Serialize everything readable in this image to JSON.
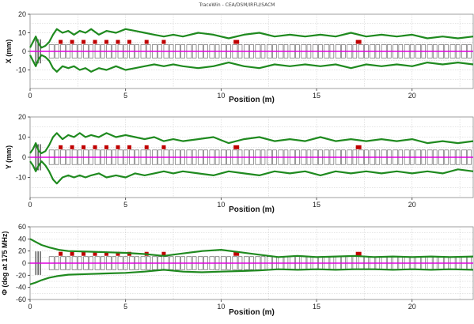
{
  "window": {
    "title": "TraceWin - CEA/DSM/IRFU/SACM"
  },
  "chart_data": [
    {
      "type": "line",
      "ylabel": "X (mm)",
      "xlabel": "Position (m)",
      "xlim": [
        0,
        23.2
      ],
      "ylim": [
        -20,
        20
      ],
      "xticks": [
        0,
        5,
        10,
        15,
        20
      ],
      "yticks": [
        -10,
        0,
        10,
        20
      ],
      "grid": true,
      "series": [
        {
          "color": "#1f8a1f",
          "x": [
            0,
            0.15,
            0.3,
            0.45,
            0.6,
            0.8,
            1.0,
            1.2,
            1.4,
            1.7,
            2.0,
            2.3,
            2.6,
            2.9,
            3.2,
            3.6,
            4.0,
            4.5,
            5.0,
            5.5,
            6.0,
            6.5,
            7.0,
            7.5,
            8.0,
            8.8,
            9.6,
            10.4,
            11.2,
            12.0,
            12.8,
            13.6,
            14.4,
            15.2,
            16.0,
            16.8,
            17.6,
            18.4,
            19.2,
            20.0,
            20.8,
            21.6,
            22.4,
            23.2
          ],
          "values": [
            2,
            5,
            8,
            4,
            2,
            3,
            5,
            9,
            12,
            10,
            11,
            9,
            11,
            10,
            12,
            9,
            11,
            10,
            12,
            11,
            10,
            9,
            8,
            9,
            8,
            10,
            9,
            7,
            9,
            10,
            8,
            9,
            8,
            9,
            8,
            10,
            8,
            9,
            8,
            9,
            7,
            8,
            7,
            8
          ]
        },
        {
          "color": "#1f8a1f",
          "x": [
            0,
            0.15,
            0.3,
            0.45,
            0.6,
            0.8,
            1.0,
            1.2,
            1.4,
            1.7,
            2.0,
            2.3,
            2.6,
            2.9,
            3.2,
            3.6,
            4.0,
            4.5,
            5.0,
            5.5,
            6.0,
            6.5,
            7.0,
            7.5,
            8.0,
            8.8,
            9.6,
            10.4,
            11.2,
            12.0,
            12.8,
            13.6,
            14.4,
            15.2,
            16.0,
            16.8,
            17.6,
            18.4,
            19.2,
            20.0,
            20.8,
            21.6,
            22.4,
            23.2
          ],
          "values": [
            -2,
            -5,
            -8,
            -4,
            -2,
            -3,
            -5,
            -9,
            -11,
            -8,
            -9,
            -8,
            -10,
            -9,
            -11,
            -9,
            -10,
            -8,
            -10,
            -9,
            -8,
            -7,
            -8,
            -7,
            -8,
            -9,
            -8,
            -6,
            -8,
            -9,
            -7,
            -8,
            -7,
            -8,
            -7,
            -9,
            -7,
            -8,
            -7,
            -8,
            -6,
            -7,
            -6,
            -7
          ]
        },
        {
          "color": "#e000e0",
          "x": [
            0,
            23.2
          ],
          "values": [
            0,
            0
          ]
        }
      ]
    },
    {
      "type": "line",
      "ylabel": "Y (mm)",
      "xlabel": "Position (m)",
      "xlim": [
        0,
        23.2
      ],
      "ylim": [
        -20,
        20
      ],
      "xticks": [
        0,
        5,
        10,
        15,
        20
      ],
      "yticks": [
        -10,
        0,
        10,
        20
      ],
      "grid": true,
      "series": [
        {
          "color": "#1f8a1f",
          "x": [
            0,
            0.15,
            0.3,
            0.45,
            0.6,
            0.8,
            1.0,
            1.2,
            1.4,
            1.7,
            2.0,
            2.3,
            2.6,
            2.9,
            3.2,
            3.6,
            4.0,
            4.5,
            5.0,
            5.5,
            6.0,
            6.5,
            7.0,
            7.5,
            8.0,
            8.8,
            9.6,
            10.4,
            11.2,
            12.0,
            12.8,
            13.6,
            14.4,
            15.2,
            16.0,
            16.8,
            17.6,
            18.4,
            19.2,
            20.0,
            20.8,
            21.6,
            22.4,
            23.2
          ],
          "values": [
            2,
            4,
            7,
            3,
            2,
            3,
            6,
            10,
            12,
            9,
            11,
            10,
            12,
            10,
            11,
            10,
            12,
            10,
            11,
            10,
            9,
            10,
            8,
            9,
            8,
            9,
            10,
            7,
            9,
            10,
            8,
            9,
            8,
            10,
            8,
            9,
            8,
            9,
            8,
            9,
            7,
            8,
            7,
            8
          ]
        },
        {
          "color": "#1f8a1f",
          "x": [
            0,
            0.15,
            0.3,
            0.45,
            0.6,
            0.8,
            1.0,
            1.2,
            1.4,
            1.7,
            2.0,
            2.3,
            2.6,
            2.9,
            3.2,
            3.6,
            4.0,
            4.5,
            5.0,
            5.5,
            6.0,
            6.5,
            7.0,
            7.5,
            8.0,
            8.8,
            9.6,
            10.4,
            11.2,
            12.0,
            12.8,
            13.6,
            14.4,
            15.2,
            16.0,
            16.8,
            17.6,
            18.4,
            19.2,
            20.0,
            20.8,
            21.6,
            22.4,
            23.2
          ],
          "values": [
            -2,
            -4,
            -7,
            -4,
            -2,
            -4,
            -7,
            -11,
            -13,
            -10,
            -9,
            -10,
            -9,
            -10,
            -9,
            -8,
            -10,
            -9,
            -10,
            -8,
            -9,
            -8,
            -7,
            -8,
            -7,
            -8,
            -9,
            -7,
            -8,
            -9,
            -7,
            -8,
            -7,
            -9,
            -7,
            -8,
            -7,
            -8,
            -7,
            -8,
            -7,
            -8,
            -6,
            -7
          ]
        },
        {
          "color": "#e000e0",
          "x": [
            0,
            23.2
          ],
          "values": [
            0,
            0
          ]
        }
      ]
    },
    {
      "type": "line",
      "ylabel": "Φ (deg at 175 MHz)",
      "xlabel": "Position (m)",
      "xlim": [
        0,
        23.2
      ],
      "ylim": [
        -60,
        60
      ],
      "xticks": [
        0,
        5,
        10,
        15,
        20
      ],
      "yticks": [
        -60,
        -40,
        -20,
        0,
        20,
        40,
        60
      ],
      "grid": true,
      "series": [
        {
          "color": "#1f8a1f",
          "x": [
            0,
            0.3,
            0.6,
            1.0,
            1.5,
            2.0,
            3.0,
            4.0,
            5.0,
            6.0,
            7.0,
            8.0,
            9.0,
            10.0,
            11.0,
            12.0,
            13.0,
            14.0,
            15.0,
            16.0,
            17.0,
            18.0,
            19.0,
            20.0,
            21.0,
            22.0,
            23.2
          ],
          "values": [
            40,
            35,
            30,
            26,
            22,
            20,
            19,
            18,
            17,
            15,
            12,
            16,
            20,
            22,
            18,
            14,
            10,
            12,
            10,
            11,
            12,
            10,
            11,
            10,
            11,
            10,
            11
          ]
        },
        {
          "color": "#1f8a1f",
          "x": [
            0,
            0.3,
            0.6,
            1.0,
            1.5,
            2.0,
            3.0,
            4.0,
            5.0,
            6.0,
            7.0,
            8.0,
            9.0,
            10.0,
            11.0,
            12.0,
            13.0,
            14.0,
            15.0,
            16.0,
            17.0,
            18.0,
            19.0,
            20.0,
            21.0,
            22.0,
            23.2
          ],
          "values": [
            -35,
            -32,
            -28,
            -24,
            -21,
            -19,
            -18,
            -17,
            -16,
            -14,
            -11,
            -14,
            -15,
            -14,
            -13,
            -12,
            -10,
            -11,
            -10,
            -11,
            -10,
            -10,
            -11,
            -10,
            -11,
            -10,
            -11
          ]
        },
        {
          "color": "#e000e0",
          "x": [
            0,
            23.2
          ],
          "values": [
            0,
            0
          ]
        }
      ]
    }
  ],
  "elements": {
    "cavities": [
      1.6,
      2.2,
      2.8,
      3.4,
      4.0,
      4.6,
      5.2,
      6.1,
      7.0,
      10.8,
      17.2
    ],
    "lattice_start": 1.0,
    "lattice_end": 23.2,
    "lattice_period": 0.6
  }
}
